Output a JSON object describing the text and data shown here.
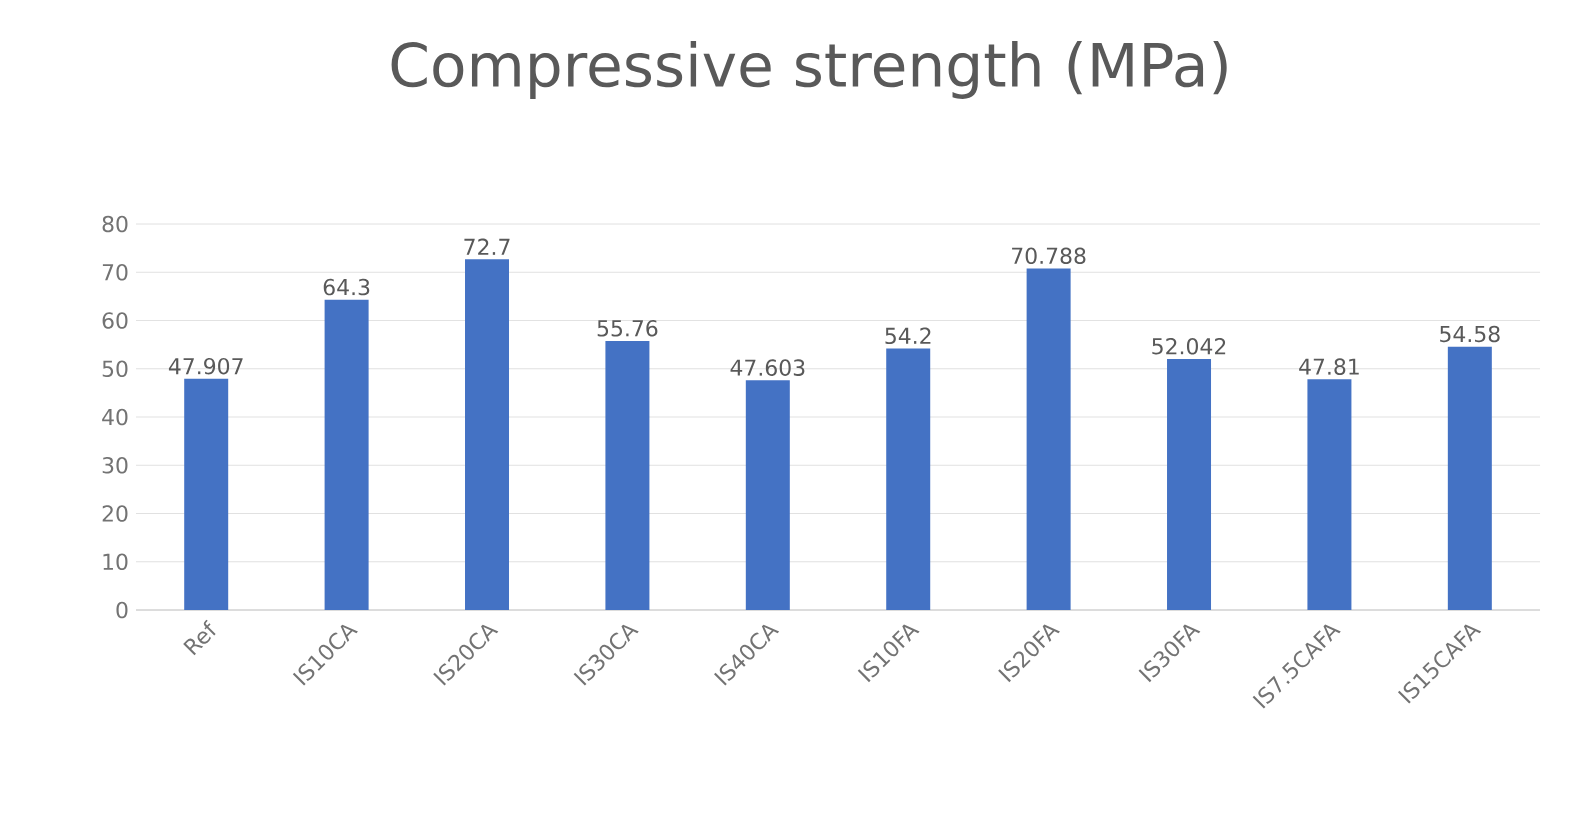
{
  "chart_data": {
    "type": "bar",
    "title": "Compressive strength (MPa)",
    "categories": [
      "Ref",
      "IS10CA",
      "IS20CA",
      "IS30CA",
      "IS40CA",
      "IS10FA",
      "IS20FA",
      "IS30FA",
      "IS7.5CAFA",
      "IS15CAFA"
    ],
    "values": [
      47.907,
      64.3,
      72.7,
      55.76,
      47.603,
      54.2,
      70.788,
      52.042,
      47.81,
      54.58
    ],
    "color": "#4472c4",
    "ylim": [
      0,
      80
    ],
    "yticks": [
      0,
      10,
      20,
      30,
      40,
      50,
      60,
      70,
      80
    ],
    "grid": "y",
    "data_labels": true
  }
}
